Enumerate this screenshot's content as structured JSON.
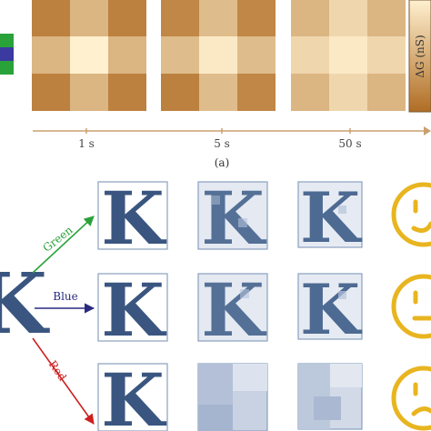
{
  "panel_a": {
    "time_labels": [
      "1 s",
      "5 s",
      "50 s"
    ],
    "colorbar_label": "ΔG (nS)",
    "caption": "(a)",
    "color_low": "#fff0cf",
    "color_high": "#b06d24",
    "heatmaps": [
      {
        "levels": [
          [
            0.85,
            0.45,
            0.85
          ],
          [
            0.45,
            0.0,
            0.45
          ],
          [
            0.85,
            0.45,
            0.85
          ]
        ]
      },
      {
        "levels": [
          [
            0.8,
            0.4,
            0.8
          ],
          [
            0.4,
            0.05,
            0.4
          ],
          [
            0.85,
            0.4,
            0.8
          ]
        ]
      },
      {
        "levels": [
          [
            0.45,
            0.2,
            0.45
          ],
          [
            0.2,
            0.05,
            0.2
          ],
          [
            0.45,
            0.2,
            0.45
          ]
        ]
      }
    ]
  },
  "panel_b": {
    "letter": "K",
    "arrow_labels": [
      "Green",
      "Blue",
      "Red"
    ],
    "arrow_colors": [
      "#2aa23a",
      "#2a2a80",
      "#cc2020"
    ],
    "letter_color": "#3a5680",
    "face_color": "#e8b520",
    "faces": [
      "happy-face-icon",
      "neutral-face-icon",
      "sad-face-icon"
    ]
  }
}
